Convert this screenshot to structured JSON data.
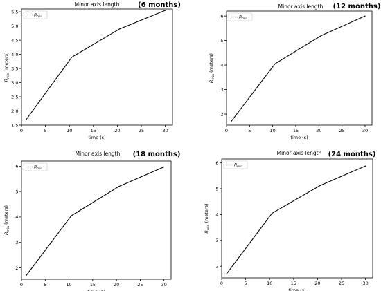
{
  "chart_data": [
    {
      "type": "line",
      "title": "Minor axis length",
      "panel_label": "(6 months)",
      "xlabel": "time (s)",
      "ylabel": "R_min (meters)",
      "ylabel_parts": {
        "symbol": "R",
        "sub": "min",
        "rest": " (meters)"
      },
      "xlim": [
        0,
        31.5
      ],
      "ylim": [
        1.5,
        5.6
      ],
      "xticks": [
        0,
        5,
        10,
        15,
        20,
        25,
        30
      ],
      "yticks": [
        1.5,
        2.0,
        2.5,
        3.0,
        3.5,
        4.0,
        4.5,
        5.0,
        5.5
      ],
      "ytick_labels": [
        "1.5",
        "2.0",
        "2.5",
        "3.0",
        "3.5",
        "4.0",
        "4.5",
        "5.0",
        "5.5"
      ],
      "legend": {
        "symbol": "R",
        "sub": "min",
        "placement": "top-left"
      },
      "series": [
        {
          "name": "R_min",
          "x": [
            1,
            10.5,
            20.5,
            30
          ],
          "y": [
            1.7,
            3.9,
            4.9,
            5.55
          ],
          "color": "#000000"
        }
      ]
    },
    {
      "type": "line",
      "title": "Minor axis length",
      "panel_label": "(12 months)",
      "xlabel": "time (s)",
      "ylabel": "R_min (meters)",
      "ylabel_parts": {
        "symbol": "R",
        "sub": "min",
        "rest": " (meters)"
      },
      "xlim": [
        0,
        31.5
      ],
      "ylim": [
        1.55,
        6.2
      ],
      "xticks": [
        0,
        5,
        10,
        15,
        20,
        25,
        30
      ],
      "yticks": [
        2,
        3,
        4,
        5,
        6
      ],
      "ytick_labels": [
        "2",
        "3",
        "4",
        "5",
        "6"
      ],
      "legend": {
        "symbol": "R",
        "sub": "min",
        "placement": "top-left"
      },
      "series": [
        {
          "name": "R_min",
          "x": [
            1,
            10.5,
            20.5,
            30
          ],
          "y": [
            1.7,
            4.05,
            5.2,
            6.0
          ],
          "color": "#000000"
        }
      ]
    },
    {
      "type": "line",
      "title": "Minor axis length",
      "panel_label": "(18 months)",
      "xlabel": "time (s)",
      "ylabel": "R_min (meters)",
      "ylabel_parts": {
        "symbol": "R",
        "sub": "min",
        "rest": " (meters)"
      },
      "xlim": [
        0,
        31.5
      ],
      "ylim": [
        1.55,
        6.2
      ],
      "xticks": [
        0,
        5,
        10,
        15,
        20,
        25,
        30
      ],
      "yticks": [
        2,
        3,
        4,
        5,
        6
      ],
      "ytick_labels": [
        "2",
        "3",
        "4",
        "5",
        "6"
      ],
      "legend": {
        "symbol": "R",
        "sub": "min",
        "placement": "top-left"
      },
      "series": [
        {
          "name": "R_min",
          "x": [
            1,
            10.5,
            20.5,
            30
          ],
          "y": [
            1.7,
            4.05,
            5.2,
            5.97
          ],
          "color": "#000000"
        }
      ]
    },
    {
      "type": "line",
      "title": "Minor axis length",
      "panel_label": "(24 months)",
      "xlabel": "time (s)",
      "ylabel": "R_min (meters)",
      "ylabel_parts": {
        "symbol": "R",
        "sub": "min",
        "rest": " (meters)"
      },
      "xlim": [
        0,
        31.5
      ],
      "ylim": [
        1.55,
        6.15
      ],
      "xticks": [
        0,
        5,
        10,
        15,
        20,
        25,
        30
      ],
      "yticks": [
        2,
        3,
        4,
        5,
        6
      ],
      "ytick_labels": [
        "2",
        "3",
        "4",
        "5",
        "6"
      ],
      "legend": {
        "symbol": "R",
        "sub": "min",
        "placement": "top-left"
      },
      "series": [
        {
          "name": "R_min",
          "x": [
            1,
            10.5,
            20.5,
            30
          ],
          "y": [
            1.7,
            4.05,
            5.12,
            5.88
          ],
          "color": "#000000"
        }
      ]
    }
  ]
}
